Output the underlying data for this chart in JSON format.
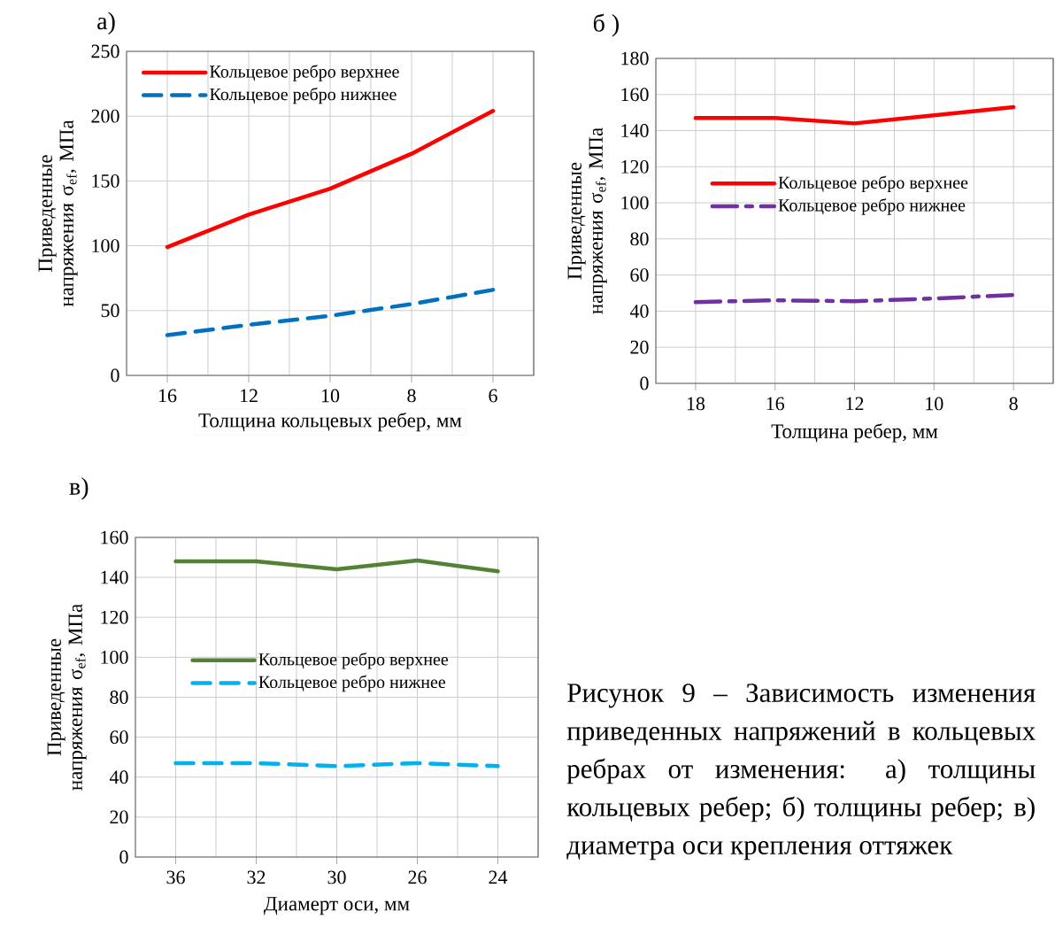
{
  "chart_data": [
    {
      "type": "line",
      "title": "а)",
      "xlabel": "Толщина кольцевых ребер, мм",
      "ylabel": "Приведенные напряжения σ$_{ef}$, МПа",
      "categories": [
        "16",
        "12",
        "10",
        "8",
        "6"
      ],
      "ylim": [
        0,
        250
      ],
      "yticks": [
        0,
        50,
        100,
        150,
        200,
        250
      ],
      "grid": true,
      "legend": "top left",
      "marker": "none",
      "series": [
        {
          "name": "Кольцевое ребро верхнее",
          "color": "#ff0000",
          "line_style": "solid",
          "values": [
            99,
            124,
            144,
            171,
            204
          ]
        },
        {
          "name": "Кольцевое ребро нижнее",
          "color": "#0070c0",
          "line_style": "dashed",
          "values": [
            31,
            39,
            46,
            55,
            66
          ]
        }
      ]
    },
    {
      "type": "line",
      "title": "б )",
      "xlabel": "Толщина ребер, мм",
      "ylabel": "Приведенные напряжения σ$_{ef}$, МПа",
      "categories": [
        "18",
        "16",
        "12",
        "10",
        "8"
      ],
      "ylim": [
        0,
        180
      ],
      "yticks": [
        0,
        20,
        40,
        60,
        80,
        100,
        120,
        140,
        160,
        180
      ],
      "grid": true,
      "legend": "left",
      "marker": "none",
      "series": [
        {
          "name": "Кольцевое ребро верхнее",
          "color": "#ff0000",
          "line_style": "solid",
          "values": [
            147,
            147,
            144,
            148.5,
            153
          ]
        },
        {
          "name": "Кольцевое ребро нижнее",
          "color": "#7030a0",
          "line_style": "dashdot",
          "values": [
            45,
            46,
            45.5,
            47,
            49
          ]
        }
      ]
    },
    {
      "type": "line",
      "title": "в)",
      "xlabel": "Диамерт оси, мм",
      "ylabel": "Приведенные напряжения σ$_{ef}$, МПа",
      "categories": [
        "36",
        "32",
        "30",
        "26",
        "24"
      ],
      "ylim": [
        0,
        160
      ],
      "yticks": [
        0,
        20,
        40,
        60,
        80,
        100,
        120,
        140,
        160
      ],
      "grid": true,
      "legend": "left",
      "marker": "none",
      "annotations": [
        "Рисунок 9 – Зависимость изменения приведенных напряжений в кольцевых ребрах от изменения: а) толщины кольцевых ребер; б) толщины ребер; в) диаметра оси крепления оттяжек"
      ],
      "series": [
        {
          "name": "Кольцевое ребро верхнее",
          "color": "#548235",
          "line_style": "solid",
          "values": [
            148,
            148,
            144,
            148.5,
            143
          ]
        },
        {
          "name": "Кольцевое ребро нижнее",
          "color": "#00b0f0",
          "line_style": "dashed",
          "values": [
            47,
            47,
            45.5,
            47,
            45.5
          ]
        }
      ]
    }
  ]
}
